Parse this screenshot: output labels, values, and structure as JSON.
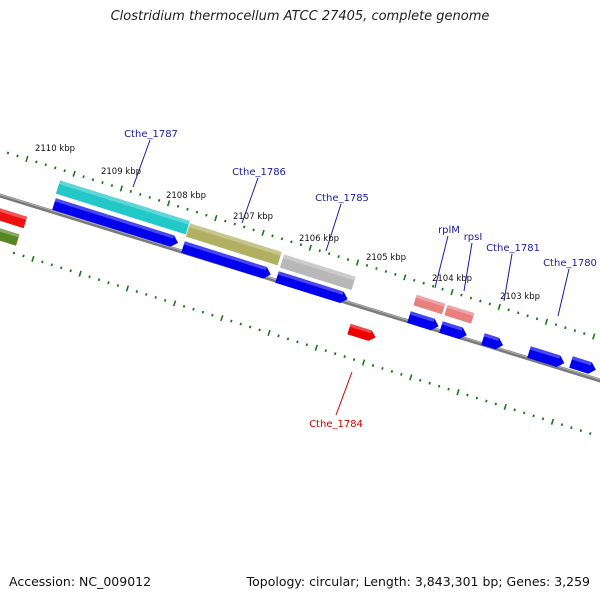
{
  "title": "Clostridium thermocellum ATCC 27405, complete genome",
  "footer": {
    "accession": "Accession: NC_009012",
    "summary": "Topology: circular; Length: 3,843,301 bp; Genes: 3,259"
  },
  "colors": {
    "backbone": "#808080",
    "cds": "#0000ee",
    "cds_highlight": "#2a3dff",
    "rna_red": "#ee0000",
    "rrna_pink": "#e98080",
    "tick": "#1a7a1a",
    "label_blue": "#1a1aa0",
    "label_red": "#cc0000",
    "cog_cyan": "#22c8c8",
    "cog_olive": "#b0b060",
    "cog_gray": "#b8b8b8",
    "cog_red": "#ee1111",
    "cog_green": "#558822"
  },
  "ruler": {
    "unit": "kbp",
    "labels": [
      "2110 kbp",
      "2109 kbp",
      "2108 kbp",
      "2107 kbp",
      "2106 kbp",
      "2105 kbp",
      "2104 kbp",
      "2103 kbp"
    ]
  },
  "genes": [
    {
      "label": "Cthe_1787",
      "color_key": "label_blue"
    },
    {
      "label": "Cthe_1786",
      "color_key": "label_blue"
    },
    {
      "label": "Cthe_1785",
      "color_key": "label_blue"
    },
    {
      "label": "rplM",
      "color_key": "label_blue"
    },
    {
      "label": "rpsI",
      "color_key": "label_blue"
    },
    {
      "label": "Cthe_1781",
      "color_key": "label_blue"
    },
    {
      "label": "Cthe_1780",
      "color_key": "label_blue"
    },
    {
      "label": "Cthe_1784",
      "color_key": "label_red"
    }
  ]
}
